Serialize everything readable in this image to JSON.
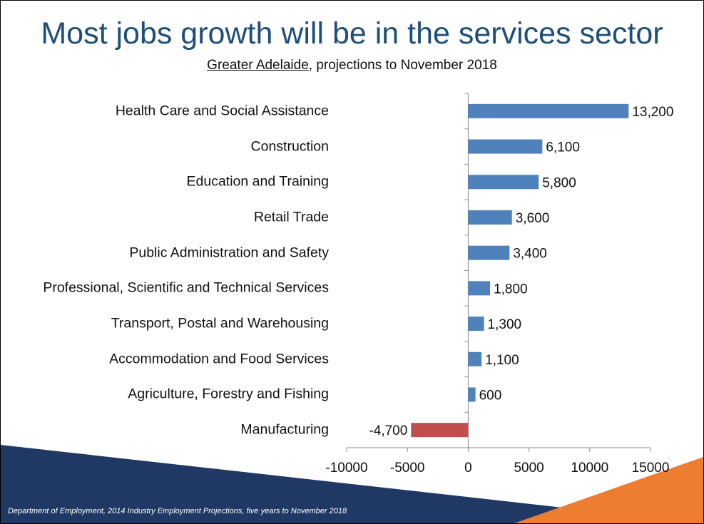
{
  "slide": {
    "title": "Most jobs growth will be in the services sector",
    "subtitle_region": "Greater Adelaide",
    "subtitle_rest": ", projections to November 2018",
    "source": "Department of Employment, 2014 Industry Employment Projections, five years to November 2018"
  },
  "colors": {
    "title": "#1f4e79",
    "positive_bar": "#4f81bd",
    "negative_bar": "#c0504d",
    "decor_navy": "#1f3864",
    "decor_orange": "#ed7d31"
  },
  "chart_data": {
    "type": "bar",
    "orientation": "horizontal",
    "categories": [
      "Health Care and Social Assistance",
      "Construction",
      "Education and Training",
      "Retail Trade",
      "Public Administration and Safety",
      "Professional, Scientific and Technical Services",
      "Transport, Postal and Warehousing",
      "Accommodation and Food Services",
      "Agriculture, Forestry and Fishing",
      "Manufacturing"
    ],
    "values": [
      13200,
      6100,
      5800,
      3600,
      3400,
      1800,
      1300,
      1100,
      600,
      -4700
    ],
    "data_labels": [
      "13,200",
      "6,100",
      "5,800",
      "3,600",
      "3,400",
      "1,800",
      "1,300",
      "1,100",
      "600",
      "-4,700"
    ],
    "xlim": [
      -10000,
      15000
    ],
    "xticks": [
      -10000,
      -5000,
      0,
      5000,
      10000,
      15000
    ],
    "xtick_labels": [
      "-10000",
      "-5000",
      "0",
      "5000",
      "10000",
      "15000"
    ],
    "grid": false,
    "legend": "none"
  }
}
